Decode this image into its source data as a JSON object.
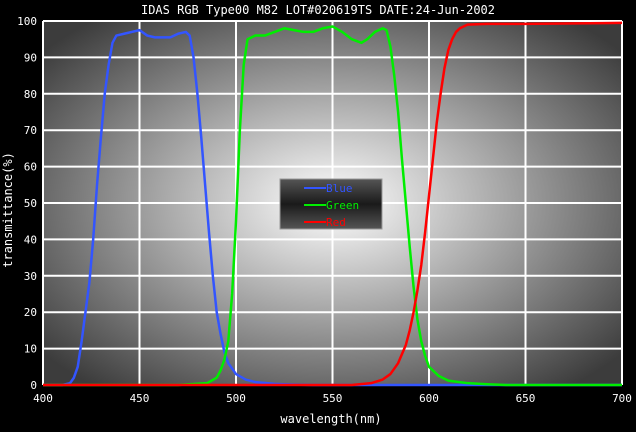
{
  "chart_data": {
    "type": "line",
    "title": "IDAS RGB Type00 M82    LOT#020619TS    DATE:24-Jun-2002",
    "xlabel": "wavelength(nm)",
    "ylabel": "transmittance(%)",
    "xlim": [
      400,
      700
    ],
    "ylim": [
      0,
      100
    ],
    "x_ticks": [
      400,
      450,
      500,
      550,
      600,
      650,
      700
    ],
    "y_ticks": [
      0,
      10,
      20,
      30,
      40,
      50,
      60,
      70,
      80,
      90,
      100
    ],
    "grid": true,
    "legend_position": "center",
    "series": [
      {
        "name": "Blue",
        "color": "#3355ff",
        "points": [
          [
            400,
            0
          ],
          [
            410,
            0
          ],
          [
            414,
            0.5
          ],
          [
            416,
            2
          ],
          [
            418,
            5
          ],
          [
            420,
            12
          ],
          [
            422,
            20
          ],
          [
            424,
            28
          ],
          [
            426,
            40
          ],
          [
            428,
            55
          ],
          [
            430,
            68
          ],
          [
            432,
            80
          ],
          [
            434,
            88
          ],
          [
            436,
            94
          ],
          [
            438,
            96
          ],
          [
            442,
            96.5
          ],
          [
            446,
            97
          ],
          [
            450,
            97.5
          ],
          [
            454,
            96
          ],
          [
            458,
            95.5
          ],
          [
            462,
            95.5
          ],
          [
            466,
            95.5
          ],
          [
            470,
            96.5
          ],
          [
            474,
            97
          ],
          [
            476,
            96
          ],
          [
            478,
            90
          ],
          [
            480,
            80
          ],
          [
            482,
            68
          ],
          [
            484,
            55
          ],
          [
            486,
            42
          ],
          [
            488,
            30
          ],
          [
            490,
            20
          ],
          [
            492,
            14
          ],
          [
            494,
            9
          ],
          [
            496,
            6
          ],
          [
            500,
            3
          ],
          [
            505,
            1.5
          ],
          [
            510,
            0.8
          ],
          [
            520,
            0.3
          ],
          [
            530,
            0.1
          ],
          [
            540,
            0
          ],
          [
            600,
            0
          ],
          [
            700,
            0
          ]
        ]
      },
      {
        "name": "Green",
        "color": "#00ee00",
        "points": [
          [
            400,
            0
          ],
          [
            470,
            0
          ],
          [
            485,
            0.5
          ],
          [
            490,
            2
          ],
          [
            492,
            4
          ],
          [
            494,
            7
          ],
          [
            496,
            12
          ],
          [
            498,
            25
          ],
          [
            500,
            45
          ],
          [
            502,
            70
          ],
          [
            504,
            88
          ],
          [
            506,
            95
          ],
          [
            510,
            96
          ],
          [
            515,
            96
          ],
          [
            520,
            97
          ],
          [
            525,
            98
          ],
          [
            530,
            97.5
          ],
          [
            535,
            97
          ],
          [
            540,
            97
          ],
          [
            545,
            98
          ],
          [
            550,
            98.5
          ],
          [
            555,
            97
          ],
          [
            560,
            95
          ],
          [
            565,
            94
          ],
          [
            568,
            95
          ],
          [
            572,
            97
          ],
          [
            576,
            98
          ],
          [
            578,
            97.5
          ],
          [
            580,
            93
          ],
          [
            582,
            85
          ],
          [
            584,
            75
          ],
          [
            586,
            62
          ],
          [
            588,
            50
          ],
          [
            590,
            38
          ],
          [
            592,
            27
          ],
          [
            594,
            18
          ],
          [
            596,
            12
          ],
          [
            598,
            8
          ],
          [
            600,
            5
          ],
          [
            605,
            2.5
          ],
          [
            610,
            1.2
          ],
          [
            620,
            0.5
          ],
          [
            630,
            0.2
          ],
          [
            640,
            0
          ],
          [
            700,
            0
          ]
        ]
      },
      {
        "name": "Red",
        "color": "#ff0000",
        "points": [
          [
            400,
            0
          ],
          [
            560,
            0
          ],
          [
            570,
            0.5
          ],
          [
            576,
            1.5
          ],
          [
            580,
            3
          ],
          [
            584,
            6
          ],
          [
            588,
            11
          ],
          [
            590,
            15
          ],
          [
            592,
            20
          ],
          [
            594,
            26
          ],
          [
            596,
            33
          ],
          [
            598,
            42
          ],
          [
            600,
            52
          ],
          [
            602,
            62
          ],
          [
            604,
            72
          ],
          [
            606,
            80
          ],
          [
            608,
            87
          ],
          [
            610,
            92
          ],
          [
            612,
            95
          ],
          [
            614,
            97
          ],
          [
            616,
            98
          ],
          [
            620,
            99
          ],
          [
            630,
            99.2
          ],
          [
            650,
            99.2
          ],
          [
            670,
            99.3
          ],
          [
            690,
            99.4
          ],
          [
            700,
            99.5
          ]
        ]
      }
    ]
  }
}
